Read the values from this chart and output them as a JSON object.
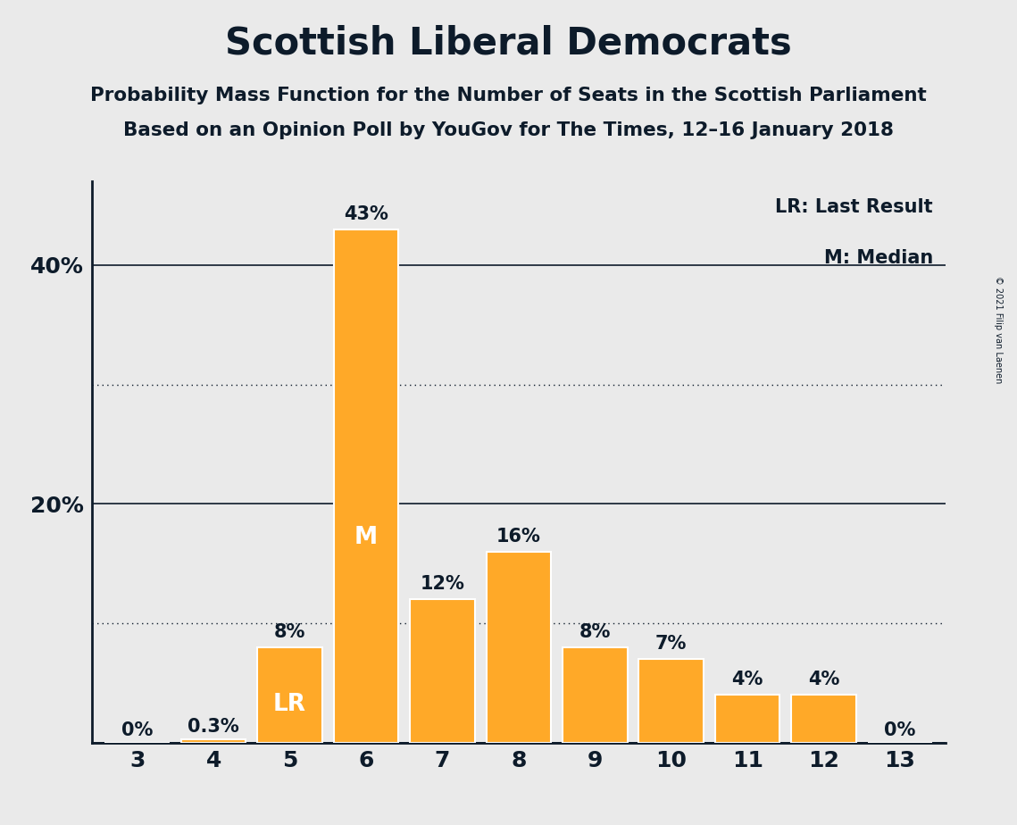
{
  "title": "Scottish Liberal Democrats",
  "subtitle1": "Probability Mass Function for the Number of Seats in the Scottish Parliament",
  "subtitle2": "Based on an Opinion Poll by YouGov for The Times, 12–16 January 2018",
  "copyright": "© 2021 Filip van Laenen",
  "categories": [
    3,
    4,
    5,
    6,
    7,
    8,
    9,
    10,
    11,
    12,
    13
  ],
  "values": [
    0.0,
    0.3,
    8.0,
    43.0,
    12.0,
    16.0,
    8.0,
    7.0,
    4.0,
    4.0,
    0.0
  ],
  "bar_color": "#FFA928",
  "bar_labels": [
    "0%",
    "0.3%",
    "8%",
    "43%",
    "12%",
    "16%",
    "8%",
    "7%",
    "4%",
    "4%",
    "0%"
  ],
  "special_labels": {
    "5": "LR",
    "6": "M"
  },
  "background_color": "#EAEAEA",
  "axis_color": "#0D1B2A",
  "solid_yticks": [
    0,
    20,
    40
  ],
  "dotted_yticks": [
    10,
    30
  ],
  "ylim": [
    0,
    47
  ],
  "legend_lr": "LR: Last Result",
  "legend_m": "M: Median",
  "title_fontsize": 30,
  "subtitle_fontsize": 15.5,
  "legend_fontsize": 15,
  "axis_label_fontsize": 18,
  "bar_label_fontsize": 15,
  "special_label_fontsize": 19,
  "copyright_fontsize": 7
}
